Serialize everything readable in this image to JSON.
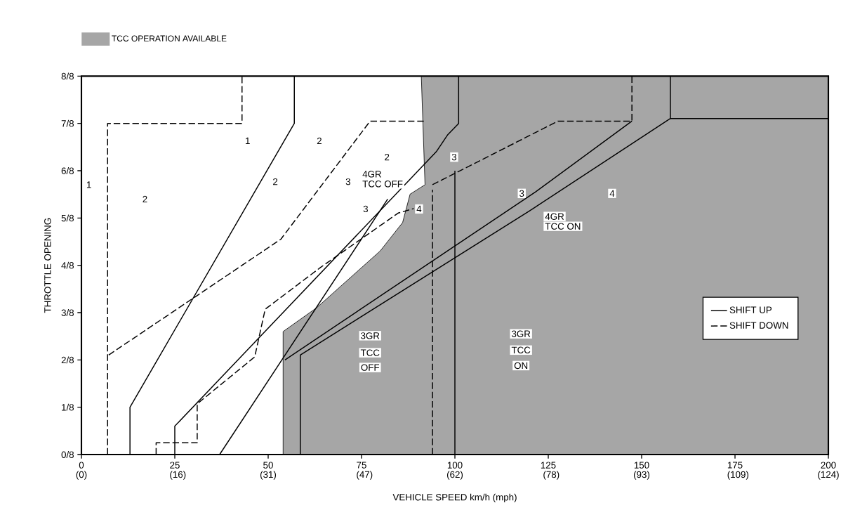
{
  "chart_data": {
    "type": "line",
    "xlabel": "VEHICLE SPEED    km/h (mph)",
    "ylabel": "THROTTLE OPENING",
    "legend": "right",
    "xlim": [
      0,
      200
    ],
    "ylim": [
      0,
      1
    ],
    "xticks": [
      0,
      25,
      50,
      75,
      100,
      125,
      150,
      175,
      200
    ],
    "x2lim": [
      0,
      124
    ],
    "x2ticks": [
      {
        "value": 0,
        "label": "(0)"
      },
      {
        "value": 16,
        "label": "(16)"
      },
      {
        "value": 31,
        "label": "(31)"
      },
      {
        "value": 47,
        "label": "(47)"
      },
      {
        "value": 62,
        "label": "(62)"
      },
      {
        "value": 78,
        "label": "(78)"
      },
      {
        "value": 93,
        "label": "(93)"
      },
      {
        "value": 109,
        "label": "(109)"
      },
      {
        "value": 124,
        "label": "(124)"
      }
    ],
    "yticks": [
      {
        "value": 0,
        "label": "0/8"
      },
      {
        "value": 0.125,
        "label": "1/8"
      },
      {
        "value": 0.25,
        "label": "2/8"
      },
      {
        "value": 0.375,
        "label": "3/8"
      },
      {
        "value": 0.5,
        "label": "4/8"
      },
      {
        "value": 0.625,
        "label": "5/8"
      },
      {
        "value": 0.75,
        "label": "6/8"
      },
      {
        "value": 0.875,
        "label": "7/8"
      },
      {
        "value": 1,
        "label": "8/8"
      }
    ],
    "series": [
      {
        "name": "TCC OPERATION AVAILABLE",
        "type": "area",
        "color": "#a6a6a6",
        "x": [
          54,
          54,
          63,
          80,
          86,
          88,
          92,
          91,
          200
        ],
        "values": [
          0,
          0.325,
          0.388,
          0.538,
          0.613,
          0.688,
          0.713,
          1,
          1
        ]
      },
      {
        "name": "SHIFT UP",
        "line_style": "solid",
        "color": "#000000",
        "x": [
          13,
          13,
          57,
          57
        ],
        "values": [
          0,
          0.125,
          0.875,
          1
        ]
      },
      {
        "line_style": "solid",
        "color": "#000000",
        "x": [
          25,
          25,
          95,
          98,
          101,
          101
        ],
        "values": [
          0,
          0.075,
          0.8,
          0.844,
          0.875,
          1
        ]
      },
      {
        "line_style": "solid",
        "color": "#000000",
        "x": [
          37,
          82
        ],
        "values": [
          0,
          0.675
        ]
      },
      {
        "line_style": "solid",
        "color": "#000000",
        "x": [
          58.6,
          58.6,
          120,
          157.7,
          157.7
        ],
        "values": [
          0,
          0.263,
          0.644,
          0.888,
          1
        ]
      },
      {
        "line_style": "solid",
        "color": "#000000",
        "x": [
          157.7,
          200
        ],
        "values": [
          0.888,
          0.888
        ]
      },
      {
        "line_style": "solid",
        "color": "#000000",
        "x": [
          54.5,
          121.6,
          147.4
        ],
        "values": [
          0.25,
          0.694,
          0.881
        ]
      },
      {
        "line_style": "solid",
        "color": "#000000",
        "x": [
          100,
          100
        ],
        "values": [
          0,
          0.75
        ]
      },
      {
        "name": "SHIFT DOWN",
        "line_style": "dashed",
        "color": "#000000",
        "x": [
          7,
          7,
          43,
          43
        ],
        "values": [
          0,
          0.875,
          0.875,
          1
        ]
      },
      {
        "line_style": "dashed",
        "color": "#000000",
        "x": [
          7.3,
          53.4,
          77.3,
          92
        ],
        "values": [
          0.263,
          0.569,
          0.881,
          0.881
        ]
      },
      {
        "line_style": "dashed",
        "color": "#000000",
        "x": [
          20,
          20,
          31,
          31,
          46.4,
          49.2,
          64.1,
          84.8,
          89
        ],
        "values": [
          0,
          0.031,
          0.031,
          0.134,
          0.258,
          0.384,
          0.495,
          0.638,
          0.65
        ]
      },
      {
        "line_style": "dashed",
        "color": "#000000",
        "x": [
          94,
          94
        ],
        "values": [
          0,
          0.7
        ]
      },
      {
        "line_style": "dashed",
        "color": "#000000",
        "x": [
          94,
          127.6,
          147.4,
          147.4
        ],
        "values": [
          0.713,
          0.881,
          0.881,
          1
        ]
      }
    ],
    "annotations": [
      {
        "text": "1",
        "x": 2,
        "y": 0.713
      },
      {
        "text": "2",
        "x": 17,
        "y": 0.675
      },
      {
        "text": "1",
        "x": 44.5,
        "y": 0.829
      },
      {
        "text": "2",
        "x": 63.7,
        "y": 0.829
      },
      {
        "text": "2",
        "x": 51.9,
        "y": 0.721
      },
      {
        "text": "3",
        "x": 71.4,
        "y": 0.721
      },
      {
        "text": "4GR",
        "x": 77.8,
        "y": 0.741
      },
      "TCC OFF",
      {
        "text": "2",
        "x": 81.8,
        "y": 0.786
      },
      {
        "text": "3",
        "x": 99.8,
        "y": 0.786
      },
      {
        "text": "3",
        "x": 76.1,
        "y": 0.649
      },
      {
        "text": "4",
        "x": 90.4,
        "y": 0.649
      },
      {
        "text": "3",
        "x": 117.9,
        "y": 0.69
      },
      {
        "text": "4",
        "x": 142.1,
        "y": 0.69
      },
      {
        "text": "4GR",
        "x": 126.7,
        "y": 0.629
      },
      "TCC ON",
      {
        "text": "3GR",
        "x": 77.3,
        "y": 0.314
      },
      {
        "text": "TCC",
        "x": 77.3,
        "y": 0.269
      },
      {
        "text": "OFF",
        "x": 77.3,
        "y": 0.23
      },
      {
        "text": "3GR",
        "x": 117.7,
        "y": 0.319
      },
      {
        "text": "TCC",
        "x": 117.7,
        "y": 0.276
      },
      {
        "text": "ON",
        "x": 117.7,
        "y": 0.235
      }
    ]
  }
}
